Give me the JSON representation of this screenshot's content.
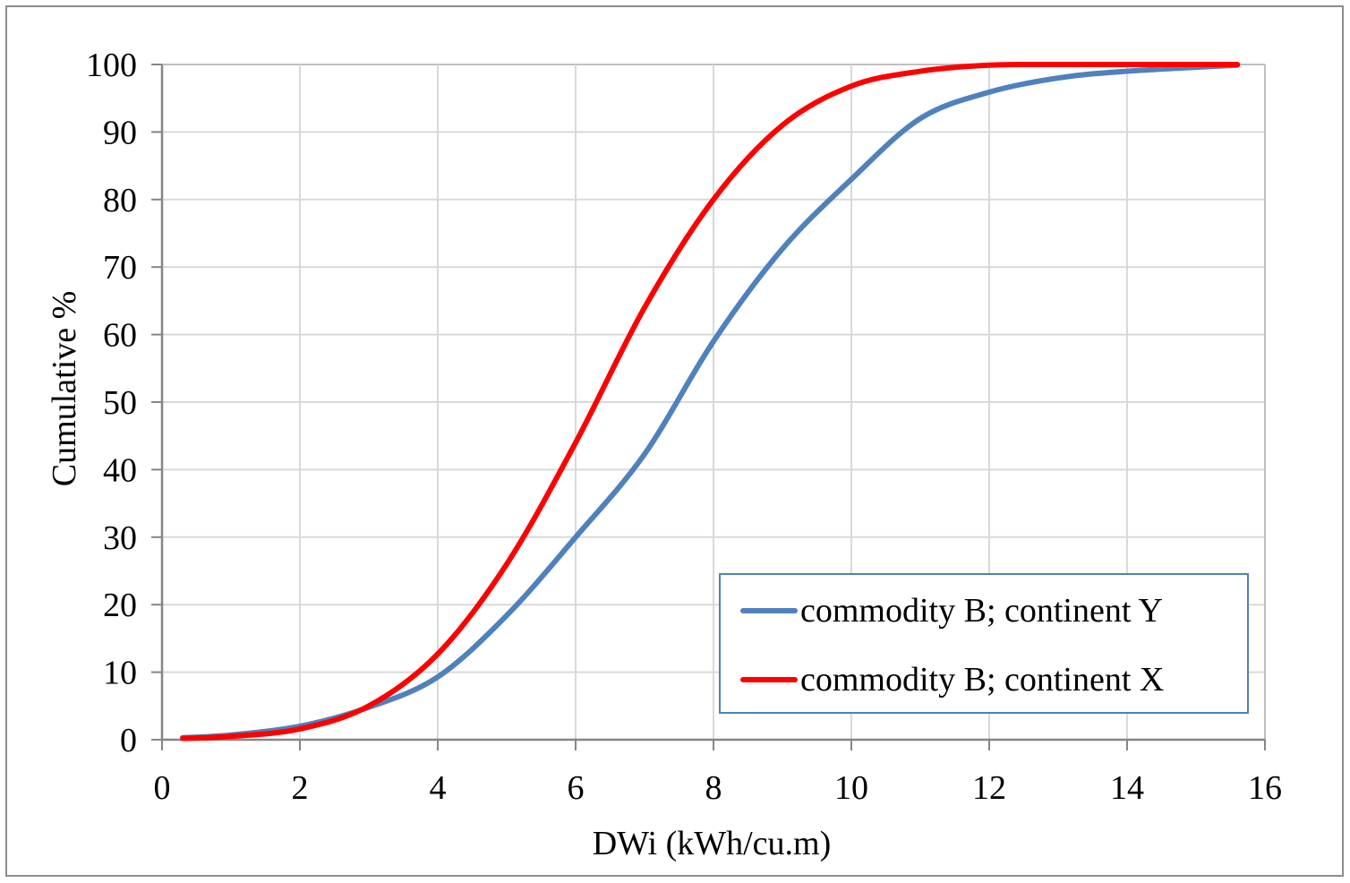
{
  "chart_data": {
    "type": "line",
    "title": "",
    "xlabel": "DWi (kWh/cu.m)",
    "ylabel": "Cumulative %",
    "xlim": [
      0,
      16
    ],
    "ylim": [
      0,
      100
    ],
    "x_ticks": [
      0,
      2,
      4,
      6,
      8,
      10,
      12,
      14,
      16
    ],
    "y_ticks": [
      0,
      10,
      20,
      30,
      40,
      50,
      60,
      70,
      80,
      90,
      100
    ],
    "grid": true,
    "legend_position": "lower right",
    "series": [
      {
        "name": "commodity B; continent Y",
        "color": "#4f81bd",
        "x": [
          0.3,
          1,
          2,
          3,
          4,
          5,
          6,
          7,
          8,
          9,
          10,
          11,
          12,
          13,
          14,
          15.6
        ],
        "values": [
          0.3,
          0.7,
          2,
          4.8,
          9.3,
          18.4,
          30,
          42.3,
          59,
          72.7,
          83,
          92,
          95.9,
          98,
          99,
          99.9
        ]
      },
      {
        "name": "commodity B; continent X",
        "color": "#ff0000",
        "x": [
          0.3,
          1,
          2,
          3,
          4,
          5,
          6,
          7,
          8,
          9,
          10,
          11,
          12,
          13,
          14,
          15.6
        ],
        "values": [
          0.2,
          0.5,
          1.6,
          5,
          12.7,
          26,
          44,
          64,
          80,
          91,
          96.8,
          99,
          99.9,
          100,
          100,
          100
        ]
      }
    ]
  },
  "legend": {
    "items": [
      {
        "label": "commodity B; continent Y",
        "color": "#4f81bd"
      },
      {
        "label": "commodity B; continent X",
        "color": "#ff0000"
      }
    ]
  }
}
